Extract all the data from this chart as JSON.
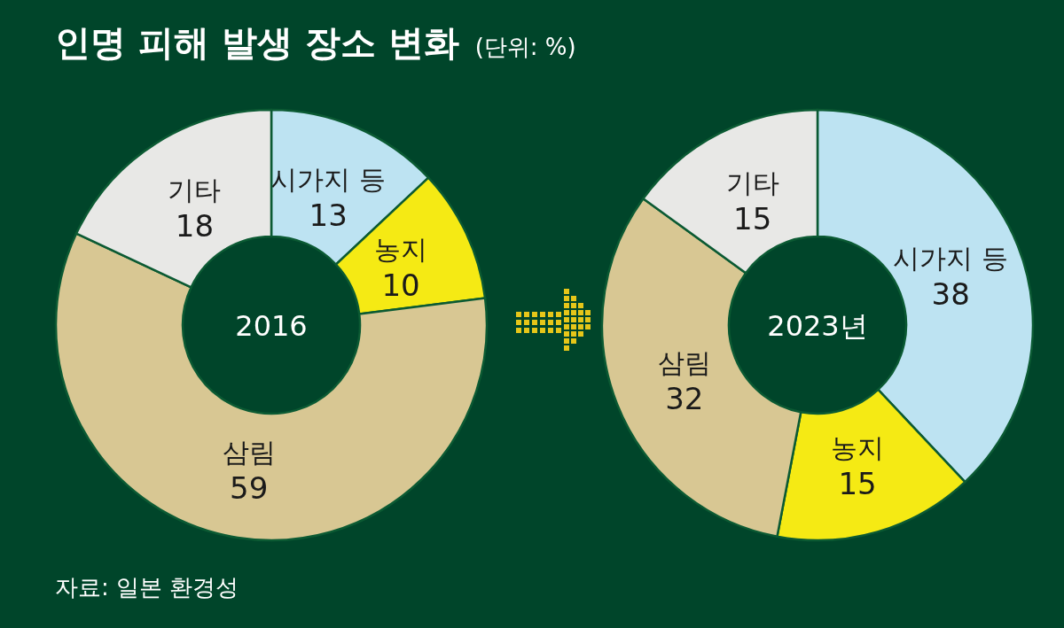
{
  "chart_data": [
    {
      "type": "donut",
      "title": "인명 피해 발생 장소 변화",
      "subtitle": "(단위: %)",
      "categories": [
        "시가지 등",
        "농지",
        "삼림",
        "기타"
      ],
      "values": [
        13,
        10,
        59,
        18
      ],
      "colors": [
        "#bde3f2",
        "#f5ea14",
        "#d8c793",
        "#e8e8e6"
      ],
      "data_labels": true,
      "annotations": [
        "2016",
        "자료: 일본 환경성"
      ]
    },
    {
      "type": "donut",
      "categories": [
        "시가지 등",
        "농지",
        "삼림",
        "기타"
      ],
      "values": [
        38,
        15,
        32,
        15
      ],
      "colors": [
        "#bde3f2",
        "#f5ea14",
        "#d8c793",
        "#e8e8e6"
      ],
      "data_labels": true,
      "annotations": [
        "2023년"
      ]
    }
  ]
}
